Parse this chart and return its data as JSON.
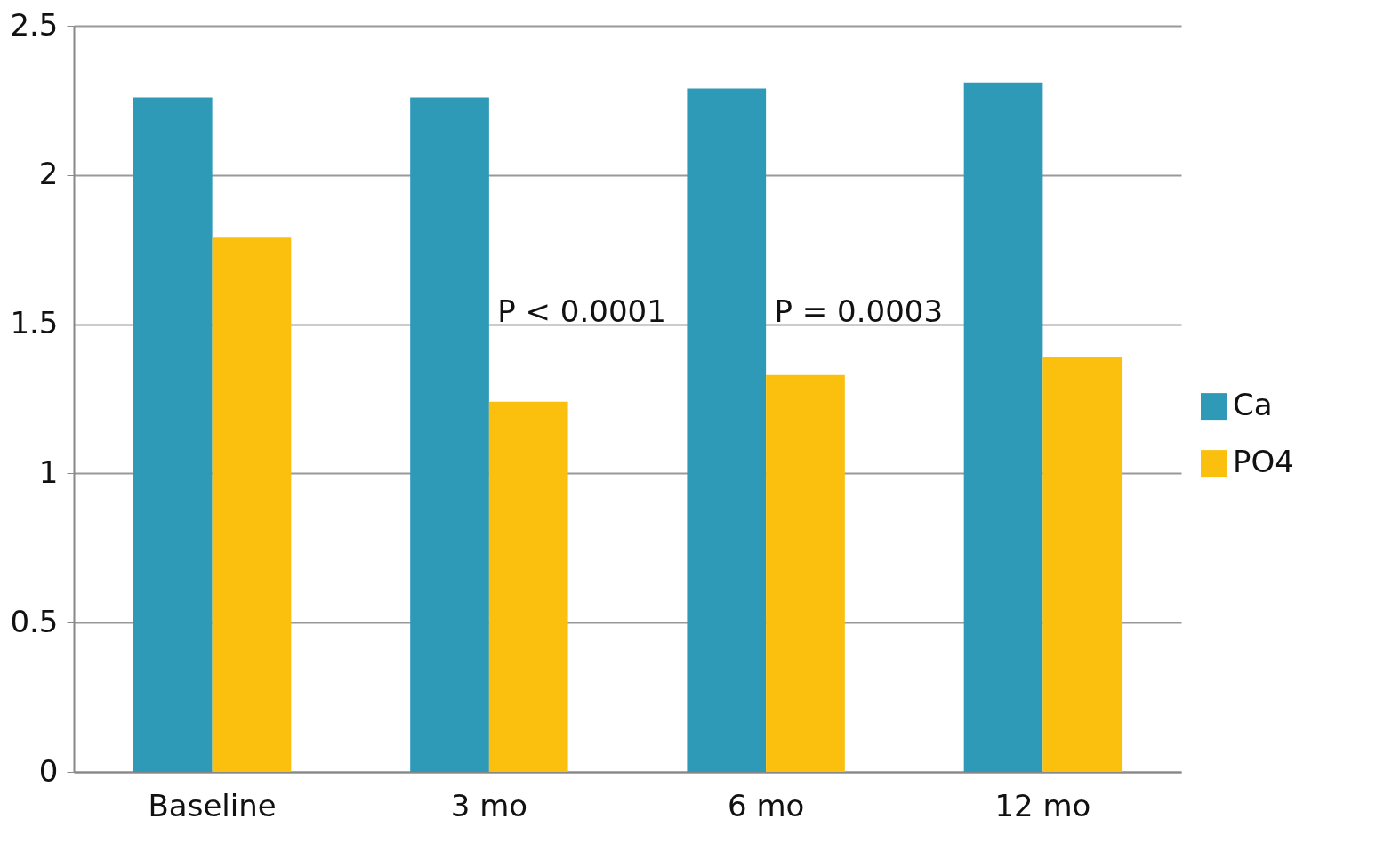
{
  "chart_data": {
    "type": "bar",
    "categories": [
      "Baseline",
      "3 mo",
      "6 mo",
      "12 mo"
    ],
    "series": [
      {
        "name": "Ca",
        "color": "#2e9ab8",
        "values": [
          2.26,
          2.26,
          2.29,
          2.31
        ]
      },
      {
        "name": "PO4",
        "color": "#fbbf0d",
        "values": [
          1.79,
          1.24,
          1.33,
          1.39
        ]
      }
    ],
    "ylim": [
      0,
      2.5
    ],
    "yticks": [
      0,
      0.5,
      1,
      1.5,
      2,
      2.5
    ],
    "grid": "y",
    "legend": "right",
    "annotations": [
      "P < 0.0001",
      "P = 0.0003"
    ]
  }
}
